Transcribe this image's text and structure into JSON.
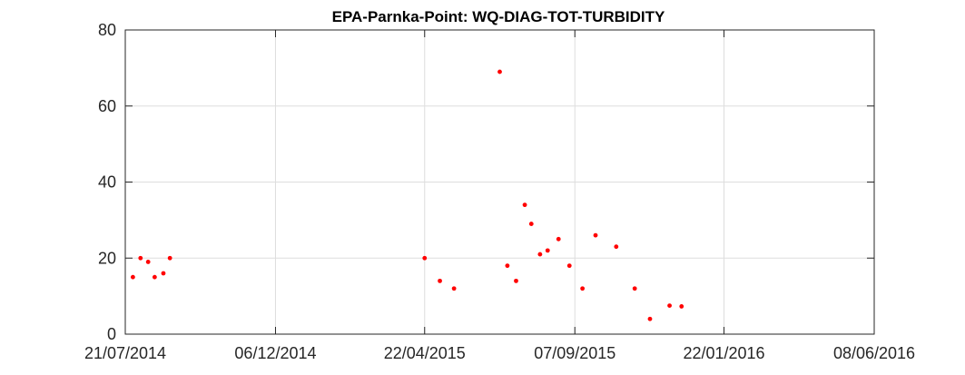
{
  "chart_data": {
    "type": "scatter",
    "title": "EPA-Parnka-Point: WQ-DIAG-TOT-TURBIDITY",
    "xlabel": "",
    "ylabel": "",
    "x_axis": "date",
    "xlim": [
      "2014-07-21",
      "2016-06-08"
    ],
    "ylim": [
      0,
      80
    ],
    "grid": true,
    "xticks": [
      "2014-07-21",
      "2014-12-06",
      "2015-04-22",
      "2015-09-07",
      "2016-01-22",
      "2016-06-08"
    ],
    "xtick_labels": [
      "21/07/2014",
      "06/12/2014",
      "22/04/2015",
      "07/09/2015",
      "22/01/2016",
      "08/06/2016"
    ],
    "yticks": [
      0,
      20,
      40,
      60,
      80
    ],
    "ytick_labels": [
      "0",
      "20",
      "40",
      "60",
      "80"
    ],
    "marker_color": "#ff0000",
    "points": [
      {
        "x": "2014-07-28",
        "y": 15
      },
      {
        "x": "2014-08-04",
        "y": 20
      },
      {
        "x": "2014-08-11",
        "y": 19
      },
      {
        "x": "2014-08-17",
        "y": 15
      },
      {
        "x": "2014-08-25",
        "y": 16
      },
      {
        "x": "2014-08-31",
        "y": 20
      },
      {
        "x": "2015-04-22",
        "y": 20
      },
      {
        "x": "2015-05-06",
        "y": 14
      },
      {
        "x": "2015-05-19",
        "y": 12
      },
      {
        "x": "2015-06-30",
        "y": 69
      },
      {
        "x": "2015-07-07",
        "y": 18
      },
      {
        "x": "2015-07-15",
        "y": 14
      },
      {
        "x": "2015-07-23",
        "y": 34
      },
      {
        "x": "2015-07-29",
        "y": 29
      },
      {
        "x": "2015-08-06",
        "y": 21
      },
      {
        "x": "2015-08-13",
        "y": 22
      },
      {
        "x": "2015-08-23",
        "y": 25
      },
      {
        "x": "2015-09-02",
        "y": 18
      },
      {
        "x": "2015-09-14",
        "y": 12
      },
      {
        "x": "2015-09-26",
        "y": 26
      },
      {
        "x": "2015-10-15",
        "y": 23
      },
      {
        "x": "2015-11-01",
        "y": 12
      },
      {
        "x": "2015-11-15",
        "y": 4
      },
      {
        "x": "2015-12-03",
        "y": 7.5
      },
      {
        "x": "2015-12-14",
        "y": 7.3
      }
    ]
  }
}
